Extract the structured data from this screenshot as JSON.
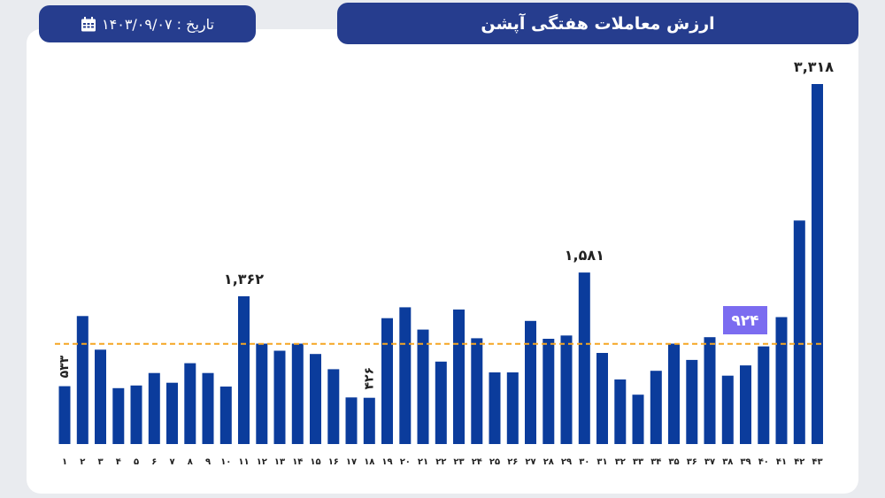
{
  "header": {
    "title": "ارزش معاملات هفتگی آپشن",
    "date_label": "تاریخ : ۱۴۰۳/۰۹/۰۷",
    "date_icon": "calendar-icon"
  },
  "colors": {
    "bar": "#0b3c9c",
    "average_line": "#f5a623",
    "average_badge": "#7b6cf0",
    "pill": "#263d8e"
  },
  "chart_data": {
    "type": "bar",
    "categories": [
      "۱",
      "۲",
      "۳",
      "۴",
      "۵",
      "۶",
      "۷",
      "۸",
      "۹",
      "۱۰",
      "۱۱",
      "۱۲",
      "۱۳",
      "۱۴",
      "۱۵",
      "۱۶",
      "۱۷",
      "۱۸",
      "۱۹",
      "۲۰",
      "۲۱",
      "۲۲",
      "۲۳",
      "۲۴",
      "۲۵",
      "۲۶",
      "۲۷",
      "۲۸",
      "۲۹",
      "۳۰",
      "۳۱",
      "۳۲",
      "۳۳",
      "۳۴",
      "۳۵",
      "۳۶",
      "۳۷",
      "۳۸",
      "۳۹",
      "۴۰",
      "۴۱",
      "۴۲",
      "۴۳"
    ],
    "values": [
      533,
      1180,
      870,
      515,
      540,
      655,
      565,
      745,
      655,
      530,
      1362,
      925,
      860,
      925,
      830,
      690,
      430,
      426,
      1160,
      1260,
      1055,
      760,
      1240,
      975,
      660,
      660,
      1135,
      970,
      1000,
      1581,
      840,
      595,
      455,
      675,
      925,
      775,
      985,
      630,
      725,
      900,
      1170,
      2060,
      3318
    ],
    "data_labels": [
      {
        "index": 0,
        "text": "۵۳۳",
        "vertical": true
      },
      {
        "index": 10,
        "text": "۱,۳۶۲",
        "vertical": false
      },
      {
        "index": 17,
        "text": "۴۲۶",
        "vertical": true
      },
      {
        "index": 29,
        "text": "۱,۵۸۱",
        "vertical": false
      },
      {
        "index": 42,
        "text": "۳,۳۱۸",
        "vertical": false
      }
    ],
    "average": 924,
    "average_label": "۹۲۴",
    "ylim": [
      0,
      3318
    ],
    "grid": false,
    "title": "ارزش معاملات هفتگی آپشن"
  }
}
